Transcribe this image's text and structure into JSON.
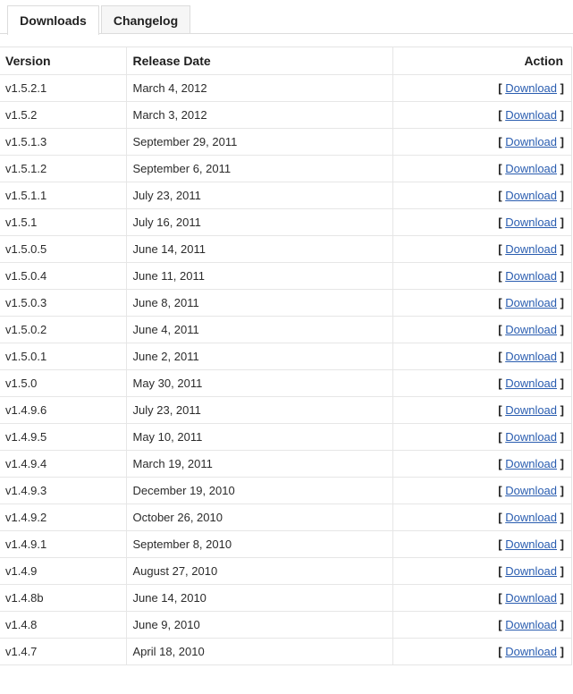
{
  "tabs": [
    {
      "label": "Downloads",
      "active": true
    },
    {
      "label": "Changelog",
      "active": false
    }
  ],
  "table": {
    "headers": {
      "version": "Version",
      "date": "Release Date",
      "action": "Action"
    },
    "link_label": "Download",
    "bracket_open": "[",
    "bracket_close": "]",
    "rows": [
      {
        "version": "v1.5.2.1",
        "date": "March 4, 2012"
      },
      {
        "version": "v1.5.2",
        "date": "March 3, 2012"
      },
      {
        "version": "v1.5.1.3",
        "date": "September 29, 2011"
      },
      {
        "version": "v1.5.1.2",
        "date": "September 6, 2011"
      },
      {
        "version": "v1.5.1.1",
        "date": "July 23, 2011"
      },
      {
        "version": "v1.5.1",
        "date": "July 16, 2011"
      },
      {
        "version": "v1.5.0.5",
        "date": "June 14, 2011"
      },
      {
        "version": "v1.5.0.4",
        "date": "June 11, 2011"
      },
      {
        "version": "v1.5.0.3",
        "date": "June 8, 2011"
      },
      {
        "version": "v1.5.0.2",
        "date": "June 4, 2011"
      },
      {
        "version": "v1.5.0.1",
        "date": "June 2, 2011"
      },
      {
        "version": "v1.5.0",
        "date": "May 30, 2011"
      },
      {
        "version": "v1.4.9.6",
        "date": "July 23, 2011"
      },
      {
        "version": "v1.4.9.5",
        "date": "May 10, 2011"
      },
      {
        "version": "v1.4.9.4",
        "date": "March 19, 2011"
      },
      {
        "version": "v1.4.9.3",
        "date": "December 19, 2010"
      },
      {
        "version": "v1.4.9.2",
        "date": "October 26, 2010"
      },
      {
        "version": "v1.4.9.1",
        "date": "September 8, 2010"
      },
      {
        "version": "v1.4.9",
        "date": "August 27, 2010"
      },
      {
        "version": "v1.4.8b",
        "date": "June 14, 2010"
      },
      {
        "version": "v1.4.8",
        "date": "June 9, 2010"
      },
      {
        "version": "v1.4.7",
        "date": "April 18, 2010"
      }
    ]
  }
}
